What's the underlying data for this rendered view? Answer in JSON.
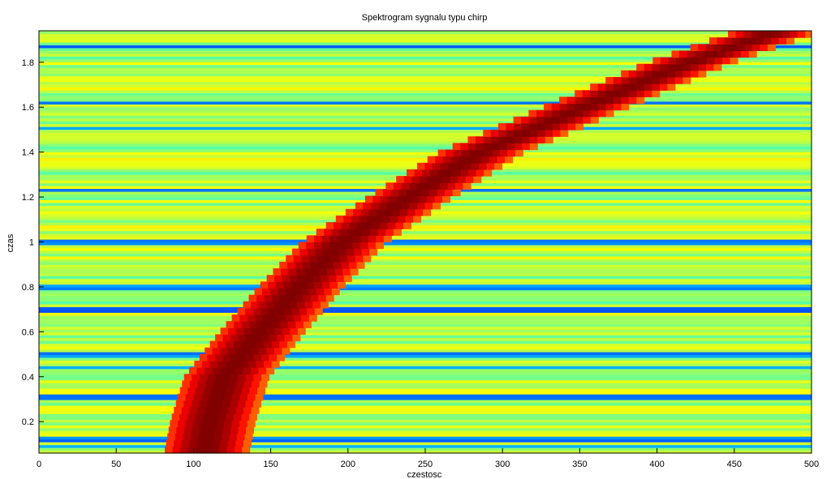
{
  "chart_data": {
    "type": "heatmap",
    "title": "Spektrogram sygnalu typu chirp",
    "xlabel": "czestosc",
    "ylabel": "czas",
    "xlim": [
      0,
      500
    ],
    "ylim": [
      0.06,
      1.94
    ],
    "x_ticks": [
      0,
      50,
      100,
      150,
      200,
      250,
      300,
      350,
      400,
      450,
      500
    ],
    "x_tick_labels": [
      "0",
      "50",
      "100",
      "150",
      "200",
      "250",
      "300",
      "350",
      "400",
      "450",
      "500"
    ],
    "y_ticks": [
      0.2,
      0.4,
      0.6,
      0.8,
      1.0,
      1.2,
      1.4,
      1.6,
      1.8
    ],
    "y_tick_labels": [
      "0.2",
      "0.4",
      "0.6",
      "0.8",
      "1",
      "1.2",
      "1.4",
      "1.6",
      "1.8"
    ],
    "colormap": "jet",
    "background_color": "#e6f03c",
    "ridge": {
      "description_points_time_freq": [
        [
          0.06,
          107
        ],
        [
          0.2,
          111
        ],
        [
          0.4,
          120
        ],
        [
          0.6,
          143
        ],
        [
          0.8,
          168
        ],
        [
          1.0,
          196
        ],
        [
          1.2,
          239
        ],
        [
          1.4,
          285
        ],
        [
          1.6,
          352
        ],
        [
          1.8,
          420
        ],
        [
          1.94,
          478
        ]
      ],
      "core_color": "#8b0000",
      "edge_colors": [
        "#ff0000",
        "#ff8c00"
      ]
    },
    "low_power_rows_time": [
      0.09,
      0.125,
      0.31,
      0.44,
      0.5,
      0.7,
      0.8,
      1.0,
      1.23,
      1.51,
      1.62,
      1.87
    ]
  }
}
